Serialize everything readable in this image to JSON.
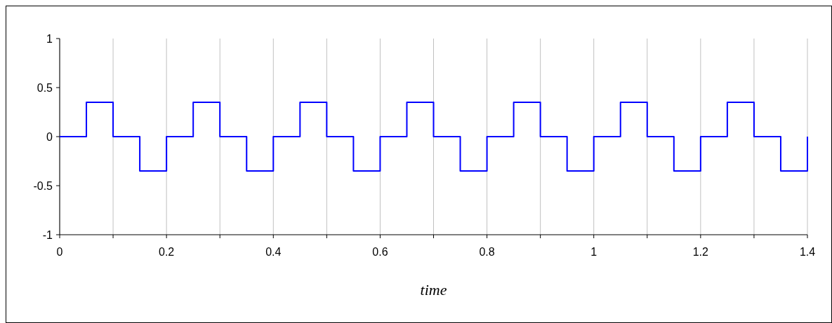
{
  "chart_data": {
    "type": "step",
    "xlabel": "time",
    "x": [
      0,
      0.05,
      0.1,
      0.15,
      0.2,
      0.25,
      0.3,
      0.35,
      0.4,
      0.45,
      0.5,
      0.55,
      0.6,
      0.65,
      0.7,
      0.75,
      0.8,
      0.85,
      0.9,
      0.95,
      1,
      1.05,
      1.1,
      1.15,
      1.2,
      1.25,
      1.3,
      1.35,
      1.4
    ],
    "series": [
      {
        "color": "#0000ff",
        "values": [
          0,
          0.35,
          0,
          -0.35,
          0,
          0.35,
          0,
          -0.35,
          0,
          0.35,
          0,
          -0.35,
          0,
          0.35,
          0,
          -0.35,
          0,
          0.35,
          0,
          -0.35,
          0,
          0.35,
          0,
          -0.35,
          0,
          0.35,
          0,
          -0.35,
          0
        ]
      }
    ],
    "xlim": [
      0,
      1.4
    ],
    "xticks": [
      0,
      {
        "value": 0.1,
        "label": null
      },
      0.2,
      {
        "value": 0.3,
        "label": null
      },
      0.4,
      {
        "value": 0.5,
        "label": null
      },
      0.6,
      {
        "value": 0.7,
        "label": null
      },
      0.8,
      {
        "value": 0.9,
        "label": null
      },
      1,
      {
        "value": 1.1,
        "label": null
      },
      1.2,
      {
        "value": 1.3,
        "label": null
      },
      1.4
    ],
    "ylim": [
      -1,
      1
    ],
    "yticks": [
      -1,
      -0.5,
      0,
      0.5,
      1
    ],
    "grid": "x"
  }
}
